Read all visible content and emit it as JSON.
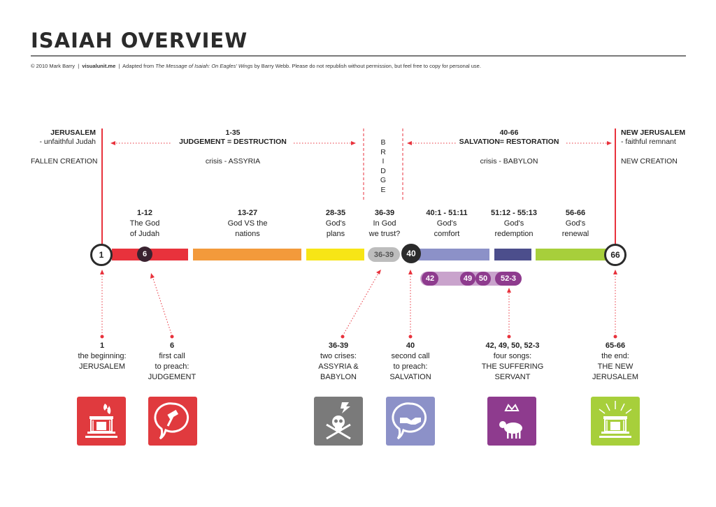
{
  "title": "ISAIAH OVERVIEW",
  "credits": {
    "copyright": "© 2010 Mark Barry",
    "site": "visualunit.me",
    "adapted_prefix": "Adapted from",
    "book": "The Message of Isaiah: On Eagles' Wings",
    "rest": "by Barry Webb. Please do not republish without permission, but feel free to copy for personal use."
  },
  "sections": {
    "jerusalem": {
      "name": "JERUSALEM",
      "sub": "- unfaithful Judah",
      "creation": "FALLEN CREATION"
    },
    "judgement": {
      "range": "1-35",
      "name": "JUDGEMENT = DESTRUCTION",
      "crisis": "crisis - ASSYRIA"
    },
    "bridge": {
      "letters": [
        "B",
        "R",
        "I",
        "D",
        "G",
        "E"
      ]
    },
    "salvation": {
      "range": "40-66",
      "name": "SALVATION= RESTORATION",
      "crisis": "crisis - BABYLON"
    },
    "new_jerusalem": {
      "name": "NEW JERUSALEM",
      "sub": "- faithful remnant",
      "creation": "NEW CREATION"
    }
  },
  "segments": [
    {
      "range": "1-12",
      "l1": "The God",
      "l2": "of Judah",
      "color": "#e8323c"
    },
    {
      "range": "13-27",
      "l1": "God VS the",
      "l2": "nations",
      "color": "#f39a3b"
    },
    {
      "range": "28-35",
      "l1": "God's",
      "l2": "plans",
      "color": "#f7e516"
    },
    {
      "range": "36-39",
      "l1": "In God",
      "l2": "we trust?",
      "color": "#bdbdbd"
    },
    {
      "range": "40:1 - 51:11",
      "l1": "God's",
      "l2": "comfort",
      "color": "#8c91c8"
    },
    {
      "range": "51:12 - 55:13",
      "l1": "God's",
      "l2": "redemption",
      "color": "#4c4e8c"
    },
    {
      "range": "56-66",
      "l1": "God's",
      "l2": "renewal",
      "color": "#a7cf3b"
    }
  ],
  "nodes": {
    "start": "1",
    "six": "6",
    "bridge": "36-39",
    "forty": "40",
    "end": "66"
  },
  "songs": [
    "42",
    "49",
    "50",
    "52-3"
  ],
  "bottom": [
    {
      "num": "1",
      "lines": [
        "the beginning:",
        "JERUSALEM"
      ],
      "icon": "temple-fire-icon",
      "color": "#e03a3e"
    },
    {
      "num": "6",
      "lines": [
        "first call",
        "to preach:",
        "JUDGEMENT"
      ],
      "icon": "gavel-speech-icon",
      "color": "#e03a3e"
    },
    {
      "num": "36-39",
      "lines": [
        "two crises:",
        "ASSYRIA &",
        "BABYLON"
      ],
      "icon": "skull-crossbones-icon",
      "color": "#7a7a7a"
    },
    {
      "num": "40",
      "lines": [
        "second call",
        "to preach:",
        "SALVATION"
      ],
      "icon": "handshake-speech-icon",
      "color": "#8c91c8"
    },
    {
      "num": "42, 49, 50, 52-3",
      "lines": [
        "four songs:",
        "THE SUFFERING",
        "SERVANT"
      ],
      "icon": "crowned-lamb-icon",
      "color": "#8e3b8e"
    },
    {
      "num": "65-66",
      "lines": [
        "the end:",
        "THE NEW",
        "JERUSALEM"
      ],
      "icon": "radiant-temple-icon",
      "color": "#a7cf3b"
    }
  ],
  "colors": {
    "red": "#e8323c",
    "dark": "#2b2b2b",
    "purple": "#8e3b8e",
    "light_purple": "#c9a3cc"
  }
}
